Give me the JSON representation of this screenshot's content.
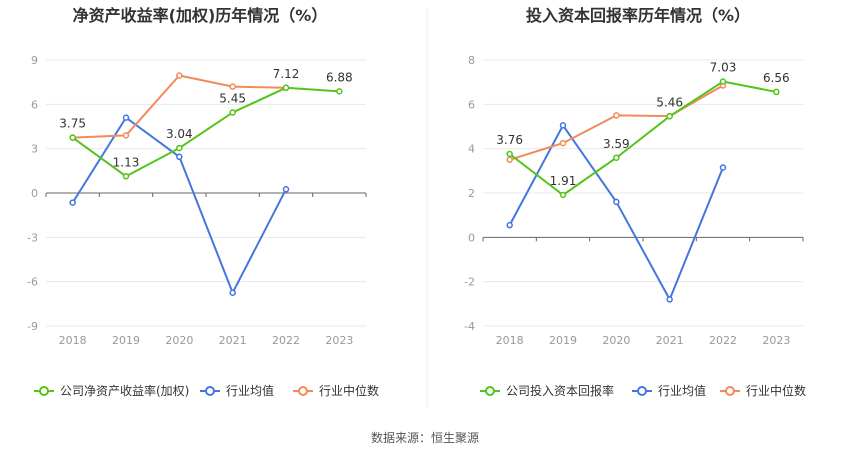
{
  "source_label": "数据来源：恒生聚源",
  "colors": {
    "company": "#52c41a",
    "avg": "#4477dd",
    "median": "#f28a5b",
    "axis_text": "#999999",
    "grid": "#e8e8e8",
    "title": "#333333"
  },
  "chart_data": [
    {
      "type": "line",
      "title": "净资产收益率(加权)历年情况（%）",
      "categories": [
        "2018",
        "2019",
        "2020",
        "2021",
        "2022",
        "2023"
      ],
      "y_ticks": [
        9,
        6,
        3,
        0,
        -3,
        -6,
        -9
      ],
      "ylim": [
        -9,
        9
      ],
      "grid": true,
      "legend_position": "bottom",
      "series": [
        {
          "name": "公司净资产收益率(加权)",
          "color": "#52c41a",
          "values": [
            3.75,
            1.13,
            3.04,
            5.45,
            7.12,
            6.88
          ],
          "labels": [
            "3.75",
            "1.13",
            "3.04",
            "5.45",
            "7.12",
            "6.88"
          ]
        },
        {
          "name": "行业均值",
          "color": "#4477dd",
          "values": [
            -0.65,
            5.1,
            2.45,
            -6.75,
            0.25,
            null
          ]
        },
        {
          "name": "行业中位数",
          "color": "#f28a5b",
          "values": [
            3.75,
            3.9,
            7.95,
            7.2,
            7.12,
            null
          ]
        }
      ]
    },
    {
      "type": "line",
      "title": "投入资本回报率历年情况（%）",
      "categories": [
        "2018",
        "2019",
        "2020",
        "2021",
        "2022",
        "2023"
      ],
      "y_ticks": [
        8,
        6,
        4,
        2,
        0,
        -2,
        -4
      ],
      "ylim": [
        -4,
        8
      ],
      "grid": true,
      "legend_position": "bottom",
      "series": [
        {
          "name": "公司投入资本回报率",
          "color": "#52c41a",
          "values": [
            3.76,
            1.91,
            3.59,
            5.46,
            7.03,
            6.56
          ],
          "labels": [
            "3.76",
            "1.91",
            "3.59",
            "5.46",
            "7.03",
            "6.56"
          ]
        },
        {
          "name": "行业均值",
          "color": "#4477dd",
          "values": [
            0.55,
            5.05,
            1.6,
            -2.8,
            3.15,
            null
          ]
        },
        {
          "name": "行业中位数",
          "color": "#f28a5b",
          "values": [
            3.5,
            4.25,
            5.5,
            5.47,
            6.85,
            null
          ]
        }
      ]
    }
  ]
}
